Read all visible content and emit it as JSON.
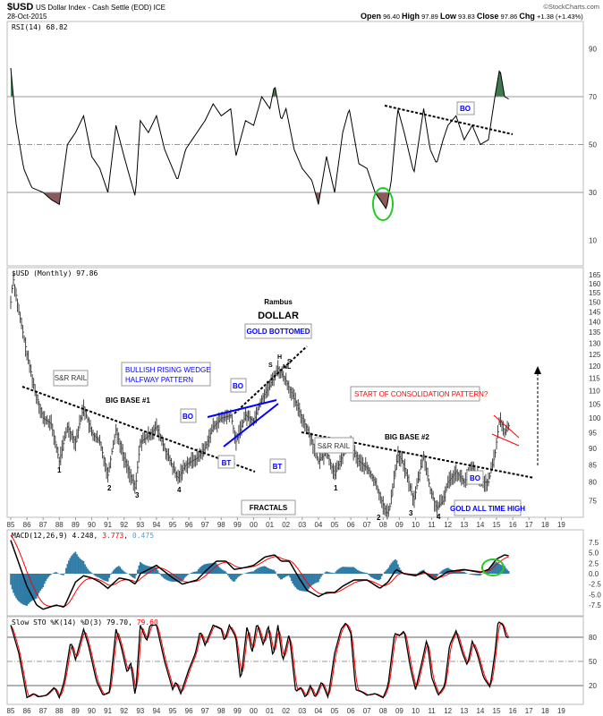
{
  "header": {
    "symbol": "$USD",
    "name": "US Dollar Index - Cash Settle (EOD) ICE",
    "date": "28-Oct-2015",
    "copyright": "©StockCharts.com",
    "open_label": "Open",
    "open": "96.40",
    "high_label": "High",
    "high": "97.89",
    "low_label": "Low",
    "low": "93.83",
    "close_label": "Close",
    "close": "97.86",
    "chg_label": "Chg",
    "chg": "+1.38 (+1.43%)"
  },
  "colors": {
    "rsi_over": "#3f7a4f",
    "rsi_under": "#8b5a5a",
    "signal": "#ff0000",
    "hist": "#2e7ba6",
    "annotation_blue": "#0000ff",
    "annotation_red": "#ff0000",
    "circle": "#22cc22"
  },
  "chart_data": [
    {
      "type": "line",
      "title": "RSI(14) 68.82",
      "ylim": [
        0,
        100
      ],
      "yticks": [
        "90",
        "70",
        "50",
        "30",
        "10"
      ],
      "levels": [
        70,
        50,
        30
      ],
      "x": [
        1985,
        1985.3,
        1985.8,
        1986.3,
        1987,
        1987.5,
        1988,
        1988.5,
        1989,
        1989.5,
        1990,
        1990.5,
        1991,
        1991.5,
        1992,
        1992.7,
        1993,
        1993.5,
        1994,
        1994.5,
        1995.3,
        1995.8,
        1996.5,
        1997,
        1997.5,
        1998,
        1998.6,
        1998.9,
        1999.5,
        2000,
        2000.5,
        2001,
        2001.3,
        2001.7,
        2002,
        2002.5,
        2003,
        2003.6,
        2004,
        2004.5,
        2005,
        2005.5,
        2005.9,
        2006.5,
        2007,
        2007.5,
        2008.2,
        2008.5,
        2008.9,
        2009.3,
        2009.9,
        2010.5,
        2010.9,
        2011.3,
        2011.7,
        2012,
        2012.5,
        2013,
        2013.5,
        2014,
        2014.5,
        2014.9,
        2015.2,
        2015.5,
        2015.8
      ],
      "values": [
        82,
        60,
        40,
        32,
        30,
        27,
        25,
        50,
        55,
        62,
        45,
        40,
        30,
        58,
        45,
        28,
        60,
        55,
        62,
        48,
        35,
        48,
        55,
        60,
        67,
        62,
        65,
        45,
        60,
        58,
        70,
        65,
        75,
        60,
        65,
        48,
        40,
        35,
        25,
        45,
        30,
        55,
        65,
        42,
        40,
        30,
        23,
        35,
        65,
        55,
        38,
        65,
        48,
        42,
        52,
        58,
        62,
        52,
        58,
        50,
        52,
        70,
        82,
        70,
        68.82
      ]
    },
    {
      "type": "bar",
      "title": "$USD (Monthly) 97.86",
      "scale": "log",
      "ylim": [
        71,
        166
      ],
      "yticks": [
        "165",
        "160",
        "155",
        "150",
        "145",
        "140",
        "135",
        "130",
        "125",
        "120",
        "115",
        "110",
        "105",
        "100",
        "95",
        "90",
        "85",
        "80",
        "75"
      ],
      "xticks": [
        "85",
        "86",
        "87",
        "88",
        "89",
        "90",
        "91",
        "92",
        "93",
        "94",
        "95",
        "96",
        "97",
        "98",
        "99",
        "00",
        "01",
        "02",
        "03",
        "04",
        "05",
        "06",
        "07",
        "08",
        "09",
        "10",
        "11",
        "12",
        "13",
        "14",
        "15",
        "16",
        "17",
        "18",
        "19"
      ],
      "x": [
        1985,
        1985.15,
        1985.5,
        1986,
        1986.5,
        1987,
        1987.5,
        1988,
        1988.5,
        1989,
        1989.5,
        1990,
        1990.5,
        1991,
        1991.5,
        1992,
        1992.7,
        1993,
        1993.5,
        1994,
        1994.5,
        1995.3,
        1995.8,
        1996.5,
        1997,
        1997.5,
        1998,
        1998.6,
        1998.9,
        1999.5,
        2000,
        2000.5,
        2001,
        2001.5,
        2002,
        2002.5,
        2003,
        2003.5,
        2004,
        2004.5,
        2005,
        2005.5,
        2005.9,
        2006.5,
        2007,
        2007.5,
        2008.2,
        2008.4,
        2008.9,
        2009.2,
        2009.9,
        2010.5,
        2010.9,
        2011.3,
        2011.7,
        2012,
        2012.5,
        2013,
        2013.5,
        2014,
        2014.5,
        2014.9,
        2015.2,
        2015.5,
        2015.8
      ],
      "values": [
        150,
        163,
        145,
        125,
        110,
        100,
        98,
        86,
        97,
        92,
        104,
        95,
        92,
        82,
        96,
        87,
        78,
        92,
        94,
        97,
        90,
        81,
        85,
        87,
        90,
        97,
        100,
        101,
        92,
        101,
        99,
        107,
        112,
        119,
        114,
        107,
        100,
        94,
        86,
        89,
        82,
        88,
        92,
        86,
        84,
        80,
        71.5,
        73,
        88,
        86,
        75,
        88,
        78,
        73,
        75,
        80,
        83,
        80,
        84,
        80,
        80,
        88,
        100,
        95,
        97.86
      ],
      "annotations": {
        "rambus": "Rambus",
        "dollar": "DOLLAR",
        "gold_bottomed": "GOLD BOTTOMED",
        "wedge_line1": "BULLISH RISING WEDGE",
        "wedge_line2": "HALFWAY PATTERN",
        "sr_rail": "S&R RAIL",
        "big_base_1": "BIG BASE #1",
        "big_base_2": "BIG BASE #2",
        "bo": "BO",
        "bt": "BT",
        "nl": "NL",
        "s": "S",
        "h": "H",
        "n1": "1",
        "n2": "2",
        "n3": "3",
        "n4": "4",
        "fractals": "FRACTALS",
        "consolidation": "START OF CONSOLIDATION PATTERN?",
        "gold_ath": "GOLD ALL TIME HIGH"
      }
    },
    {
      "type": "line",
      "title": "MACD(12,26,9)",
      "macd": "4.248",
      "signal": "3.773",
      "histogram": "0.475",
      "ylim": [
        -9.5,
        9.5
      ],
      "yticks": [
        "7.5",
        "5.0",
        "2.5",
        "0.0",
        "-2.5",
        "-5.0",
        "-7.5"
      ],
      "x": [
        1985,
        1986,
        1986.6,
        1987,
        1987.8,
        1988.3,
        1989,
        1989.5,
        1990,
        1990.5,
        1991,
        1991.7,
        1992.3,
        1992.7,
        1993,
        1993.5,
        1994,
        1994.5,
        1995,
        1995.6,
        1996.5,
        1997,
        1997.7,
        1998.3,
        1998.8,
        1999.5,
        2000,
        2000.7,
        2001.3,
        2001.7,
        2002.2,
        2002.8,
        2003.3,
        2004,
        2004.5,
        2005,
        2005.5,
        2006.2,
        2007,
        2007.8,
        2008.3,
        2008.8,
        2009.3,
        2010,
        2010.5,
        2011.2,
        2012,
        2013,
        2014,
        2014.5,
        2015,
        2015.5,
        2015.8
      ],
      "values": [
        8,
        -3,
        -7.5,
        -8.5,
        -7.5,
        -8,
        -2,
        -0.5,
        -1,
        -2,
        -3.5,
        -1,
        -1.5,
        -2.5,
        0,
        1,
        2,
        0.5,
        -1,
        -2.5,
        -1.5,
        0.5,
        3,
        3,
        1,
        1.5,
        2,
        4,
        4.5,
        3,
        3,
        -1,
        -4,
        -5.5,
        -4.5,
        -4.5,
        -3,
        -1.5,
        -1.5,
        -3.5,
        -2,
        1,
        0,
        -0.5,
        0.5,
        -1.5,
        0.5,
        1,
        0.3,
        1,
        3.5,
        4.5,
        4.248
      ]
    },
    {
      "type": "line",
      "title": "Slow STO %K(14) %D(3)",
      "k": "79.70",
      "d": "79.60",
      "ylim": [
        0,
        105
      ],
      "yticks": [
        "80",
        "50",
        "20"
      ],
      "levels": [
        80,
        50,
        20
      ],
      "x": [
        1985,
        1985.5,
        1986,
        1986.4,
        1986.7,
        1987.2,
        1987.7,
        1988,
        1988.3,
        1988.7,
        1989,
        1989.5,
        1989.8,
        1990.3,
        1990.7,
        1991.1,
        1991.5,
        1991.8,
        1992.2,
        1992.4,
        1992.7,
        1993,
        1993.4,
        1993.6,
        1994,
        1994.5,
        1995,
        1995.2,
        1995.5,
        1996,
        1996.4,
        1996.7,
        1997,
        1997.5,
        1998,
        1998.2,
        1998.5,
        1998.9,
        1999.2,
        1999.6,
        1999.9,
        2000.2,
        2000.6,
        2000.9,
        2001.2,
        2001.5,
        2001.8,
        2002.2,
        2002.6,
        2002.9,
        2003.2,
        2003.5,
        2003.8,
        2004.2,
        2004.6,
        2005,
        2005.4,
        2005.7,
        2006,
        2006.3,
        2006.7,
        2007,
        2007.5,
        2008,
        2008.3,
        2008.7,
        2009,
        2009.3,
        2009.7,
        2010,
        2010.4,
        2010.7,
        2011,
        2011.4,
        2011.8,
        2012.1,
        2012.5,
        2012.9,
        2013.2,
        2013.5,
        2013.8,
        2014.2,
        2014.6,
        2014.9,
        2015.1,
        2015.4,
        2015.6,
        2015.8
      ],
      "values": [
        95,
        60,
        5,
        10,
        6,
        8,
        18,
        5,
        25,
        75,
        52,
        90,
        70,
        25,
        8,
        12,
        90,
        70,
        35,
        50,
        5,
        95,
        75,
        95,
        95,
        50,
        15,
        25,
        10,
        40,
        60,
        88,
        70,
        95,
        90,
        75,
        95,
        80,
        25,
        95,
        60,
        98,
        70,
        95,
        55,
        95,
        50,
        85,
        12,
        18,
        5,
        20,
        5,
        25,
        5,
        60,
        90,
        98,
        85,
        15,
        12,
        8,
        10,
        5,
        20,
        85,
        82,
        88,
        40,
        15,
        50,
        78,
        30,
        8,
        20,
        70,
        88,
        60,
        45,
        75,
        60,
        30,
        18,
        60,
        100,
        95,
        80,
        79.7
      ]
    }
  ]
}
